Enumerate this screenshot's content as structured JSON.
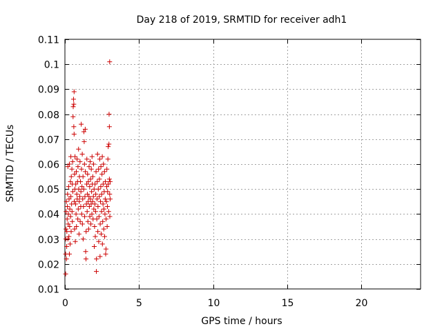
{
  "chart_data": {
    "type": "scatter",
    "title": "Day 218 of 2019, SRMTID for receiver adh1",
    "xlabel": "GPS time / hours",
    "ylabel": "SRMTID / TECUs",
    "xlim": [
      0,
      24
    ],
    "ylim": [
      0.01,
      0.11
    ],
    "xticks": [
      0,
      5,
      10,
      15,
      20
    ],
    "xtick_labels": [
      "0",
      "5",
      "10",
      "15",
      "20"
    ],
    "yticks": [
      0.01,
      0.02,
      0.03,
      0.04,
      0.05,
      0.06,
      0.07,
      0.08,
      0.09,
      0.1,
      0.11
    ],
    "ytick_labels": [
      "0.01",
      "0.02",
      "0.03",
      "0.04",
      "0.05",
      "0.06",
      "0.07",
      "0.08",
      "0.09",
      "0.1",
      "0.11"
    ],
    "grid": true,
    "marker": "+",
    "color": "#cc0000",
    "series": [
      {
        "name": "SRMTID",
        "points": [
          [
            0.05,
            0.016
          ],
          [
            0.05,
            0.024
          ],
          [
            0.06,
            0.03
          ],
          [
            0.07,
            0.034
          ],
          [
            0.08,
            0.041
          ],
          [
            0.1,
            0.045
          ],
          [
            0.1,
            0.022
          ],
          [
            0.12,
            0.027
          ],
          [
            0.13,
            0.033
          ],
          [
            0.15,
            0.038
          ],
          [
            0.17,
            0.043
          ],
          [
            0.18,
            0.048
          ],
          [
            0.2,
            0.03
          ],
          [
            0.2,
            0.059
          ],
          [
            0.22,
            0.036
          ],
          [
            0.23,
            0.04
          ],
          [
            0.25,
            0.051
          ],
          [
            0.27,
            0.031
          ],
          [
            0.28,
            0.046
          ],
          [
            0.3,
            0.06
          ],
          [
            0.3,
            0.024
          ],
          [
            0.32,
            0.035
          ],
          [
            0.33,
            0.042
          ],
          [
            0.35,
            0.028
          ],
          [
            0.37,
            0.053
          ],
          [
            0.38,
            0.039
          ],
          [
            0.4,
            0.047
          ],
          [
            0.4,
            0.063
          ],
          [
            0.42,
            0.033
          ],
          [
            0.43,
            0.055
          ],
          [
            0.45,
            0.044
          ],
          [
            0.47,
            0.058
          ],
          [
            0.48,
            0.041
          ],
          [
            0.5,
            0.052
          ],
          [
            0.5,
            0.037
          ],
          [
            0.52,
            0.061
          ],
          [
            0.53,
            0.049
          ],
          [
            0.55,
            0.079
          ],
          [
            0.56,
            0.083
          ],
          [
            0.58,
            0.086
          ],
          [
            0.6,
            0.084
          ],
          [
            0.62,
            0.089
          ],
          [
            0.6,
            0.075
          ],
          [
            0.62,
            0.072
          ],
          [
            0.63,
            0.045
          ],
          [
            0.65,
            0.056
          ],
          [
            0.65,
            0.034
          ],
          [
            0.67,
            0.05
          ],
          [
            0.68,
            0.063
          ],
          [
            0.7,
            0.029
          ],
          [
            0.72,
            0.044
          ],
          [
            0.73,
            0.052
          ],
          [
            0.75,
            0.04
          ],
          [
            0.77,
            0.057
          ],
          [
            0.78,
            0.035
          ],
          [
            0.8,
            0.048
          ],
          [
            0.82,
            0.062
          ],
          [
            0.83,
            0.046
          ],
          [
            0.85,
            0.053
          ],
          [
            0.87,
            0.038
          ],
          [
            0.88,
            0.059
          ],
          [
            0.9,
            0.042
          ],
          [
            0.92,
            0.066
          ],
          [
            0.93,
            0.05
          ],
          [
            0.95,
            0.032
          ],
          [
            0.97,
            0.045
          ],
          [
            0.98,
            0.055
          ],
          [
            1.0,
            0.047
          ],
          [
            1.02,
            0.061
          ],
          [
            1.03,
            0.037
          ],
          [
            1.05,
            0.053
          ],
          [
            1.07,
            0.043
          ],
          [
            1.08,
            0.049
          ],
          [
            1.1,
            0.076
          ],
          [
            1.12,
            0.058
          ],
          [
            1.13,
            0.04
          ],
          [
            1.15,
            0.051
          ],
          [
            1.17,
            0.064
          ],
          [
            1.18,
            0.036
          ],
          [
            1.2,
            0.046
          ],
          [
            1.22,
            0.055
          ],
          [
            1.23,
            0.03
          ],
          [
            1.25,
            0.043
          ],
          [
            1.27,
            0.05
          ],
          [
            1.28,
            0.073
          ],
          [
            1.3,
            0.069
          ],
          [
            1.32,
            0.06
          ],
          [
            1.33,
            0.039
          ],
          [
            1.35,
            0.047
          ],
          [
            1.37,
            0.074
          ],
          [
            1.38,
            0.057
          ],
          [
            1.4,
            0.025
          ],
          [
            1.42,
            0.022
          ],
          [
            1.43,
            0.033
          ],
          [
            1.45,
            0.044
          ],
          [
            1.47,
            0.052
          ],
          [
            1.48,
            0.062
          ],
          [
            1.5,
            0.041
          ],
          [
            1.52,
            0.048
          ],
          [
            1.53,
            0.056
          ],
          [
            1.55,
            0.037
          ],
          [
            1.57,
            0.045
          ],
          [
            1.58,
            0.053
          ],
          [
            1.6,
            0.034
          ],
          [
            1.62,
            0.047
          ],
          [
            1.63,
            0.059
          ],
          [
            1.65,
            0.043
          ],
          [
            1.67,
            0.051
          ],
          [
            1.68,
            0.039
          ],
          [
            1.7,
            0.061
          ],
          [
            1.72,
            0.046
          ],
          [
            1.73,
            0.054
          ],
          [
            1.75,
            0.036
          ],
          [
            1.77,
            0.044
          ],
          [
            1.78,
            0.058
          ],
          [
            1.8,
            0.049
          ],
          [
            1.82,
            0.04
          ],
          [
            1.83,
            0.063
          ],
          [
            1.85,
            0.052
          ],
          [
            1.87,
            0.045
          ],
          [
            1.88,
            0.055
          ],
          [
            1.9,
            0.038
          ],
          [
            1.92,
            0.047
          ],
          [
            1.93,
            0.06
          ],
          [
            1.95,
            0.042
          ],
          [
            1.97,
            0.05
          ],
          [
            1.98,
            0.027
          ],
          [
            2.0,
            0.035
          ],
          [
            2.02,
            0.044
          ],
          [
            2.03,
            0.052
          ],
          [
            2.05,
            0.031
          ],
          [
            2.07,
            0.041
          ],
          [
            2.08,
            0.048
          ],
          [
            2.1,
            0.057
          ],
          [
            2.12,
            0.017
          ],
          [
            2.13,
            0.022
          ],
          [
            2.15,
            0.038
          ],
          [
            2.17,
            0.046
          ],
          [
            2.18,
            0.053
          ],
          [
            2.2,
            0.064
          ],
          [
            2.22,
            0.033
          ],
          [
            2.23,
            0.043
          ],
          [
            2.25,
            0.05
          ],
          [
            2.27,
            0.058
          ],
          [
            2.28,
            0.029
          ],
          [
            2.3,
            0.039
          ],
          [
            2.32,
            0.047
          ],
          [
            2.33,
            0.054
          ],
          [
            2.35,
            0.062
          ],
          [
            2.37,
            0.023
          ],
          [
            2.38,
            0.036
          ],
          [
            2.4,
            0.045
          ],
          [
            2.42,
            0.051
          ],
          [
            2.43,
            0.059
          ],
          [
            2.45,
            0.032
          ],
          [
            2.47,
            0.041
          ],
          [
            2.48,
            0.048
          ],
          [
            2.5,
            0.056
          ],
          [
            2.52,
            0.063
          ],
          [
            2.53,
            0.028
          ],
          [
            2.55,
            0.037
          ],
          [
            2.57,
            0.044
          ],
          [
            2.58,
            0.052
          ],
          [
            2.6,
            0.06
          ],
          [
            2.62,
            0.034
          ],
          [
            2.63,
            0.042
          ],
          [
            2.65,
            0.049
          ],
          [
            2.67,
            0.057
          ],
          [
            2.68,
            0.031
          ],
          [
            2.7,
            0.04
          ],
          [
            2.72,
            0.046
          ],
          [
            2.73,
            0.053
          ],
          [
            2.75,
            0.024
          ],
          [
            2.77,
            0.026
          ],
          [
            2.78,
            0.038
          ],
          [
            2.8,
            0.045
          ],
          [
            2.82,
            0.051
          ],
          [
            2.83,
            0.058
          ],
          [
            2.85,
            0.035
          ],
          [
            2.87,
            0.043
          ],
          [
            2.88,
            0.049
          ],
          [
            2.9,
            0.062
          ],
          [
            2.92,
            0.067
          ],
          [
            2.93,
            0.052
          ],
          [
            2.95,
            0.041
          ],
          [
            2.97,
            0.068
          ],
          [
            2.98,
            0.08
          ],
          [
            3.0,
            0.075
          ],
          [
            3.0,
            0.054
          ],
          [
            3.02,
            0.048
          ],
          [
            3.02,
            0.101
          ],
          [
            3.03,
            0.039
          ],
          [
            3.05,
            0.046
          ],
          [
            3.05,
            0.053
          ]
        ]
      }
    ]
  }
}
